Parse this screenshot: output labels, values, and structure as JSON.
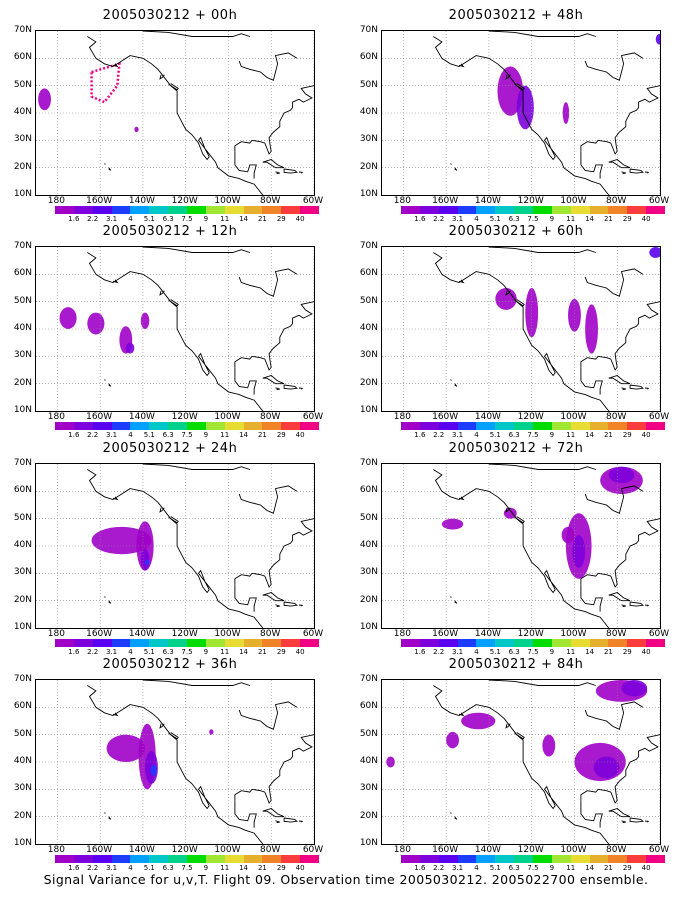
{
  "panels": [
    {
      "title": "2005030212 + 00h"
    },
    {
      "title": "2005030212 + 48h"
    },
    {
      "title": "2005030212 + 12h"
    },
    {
      "title": "2005030212 + 60h"
    },
    {
      "title": "2005030212 + 24h"
    },
    {
      "title": "2005030212 + 72h"
    },
    {
      "title": "2005030212 + 36h"
    },
    {
      "title": "2005030212 + 84h"
    }
  ],
  "lat_labels": [
    "70N",
    "60N",
    "50N",
    "40N",
    "30N",
    "20N",
    "10N"
  ],
  "lon_labels": [
    "180",
    "160W",
    "140W",
    "120W",
    "100W",
    "80W",
    "60W"
  ],
  "colorbar": {
    "labels": [
      "1.6",
      "2.2",
      "3.1",
      "4",
      "5.1",
      "6.3",
      "7.5",
      "9",
      "11",
      "14",
      "21",
      "29",
      "40"
    ],
    "colors": [
      "#a000c8",
      "#7d00dc",
      "#5a00f0",
      "#1e3cff",
      "#00a0ff",
      "#00c8c8",
      "#00d28c",
      "#00dc00",
      "#a0e632",
      "#e6dc32",
      "#e6af2d",
      "#f08228",
      "#fa3c3c",
      "#f00082"
    ]
  },
  "footer": "Signal Variance for u,v,T. Flight 09. Observation time 2005030212. 2005022700 ensemble."
}
